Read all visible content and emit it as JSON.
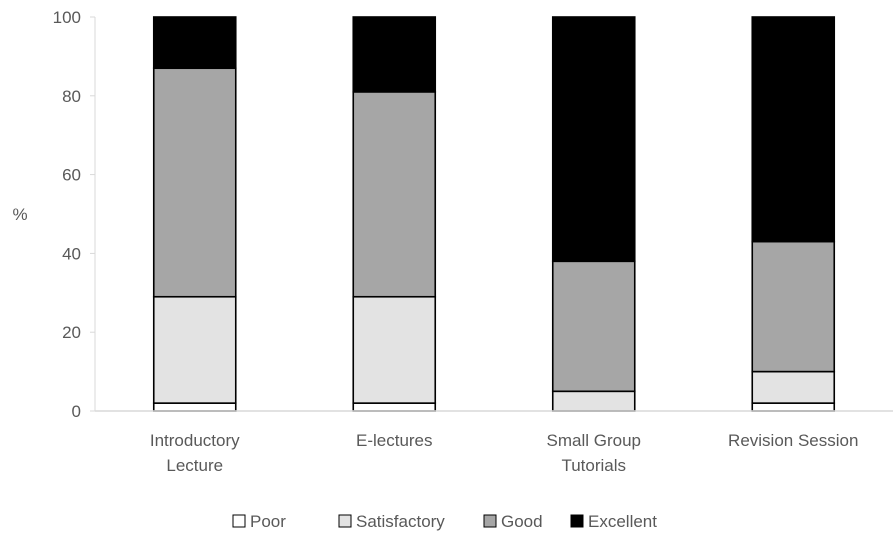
{
  "chart_data": {
    "type": "bar",
    "stacked": true,
    "categories": [
      [
        "Introductory",
        "Lecture"
      ],
      [
        "E-lectures"
      ],
      [
        "Small Group",
        "Tutorials"
      ],
      [
        "Revision Session"
      ]
    ],
    "series": [
      {
        "name": "Poor",
        "values": [
          2,
          2,
          0,
          2
        ],
        "color": "#ffffff"
      },
      {
        "name": "Satisfactory",
        "values": [
          27,
          27,
          5,
          8
        ],
        "color": "#e3e3e3"
      },
      {
        "name": "Good",
        "values": [
          58,
          52,
          33,
          33
        ],
        "color": "#a6a6a6"
      },
      {
        "name": "Excellent",
        "values": [
          13,
          19,
          62,
          57
        ],
        "color": "#000000"
      }
    ],
    "ylabel": "%",
    "ylim": [
      0,
      100
    ],
    "yticks": [
      0,
      20,
      40,
      60,
      80,
      100
    ],
    "grid": false,
    "legend_position": "bottom"
  }
}
